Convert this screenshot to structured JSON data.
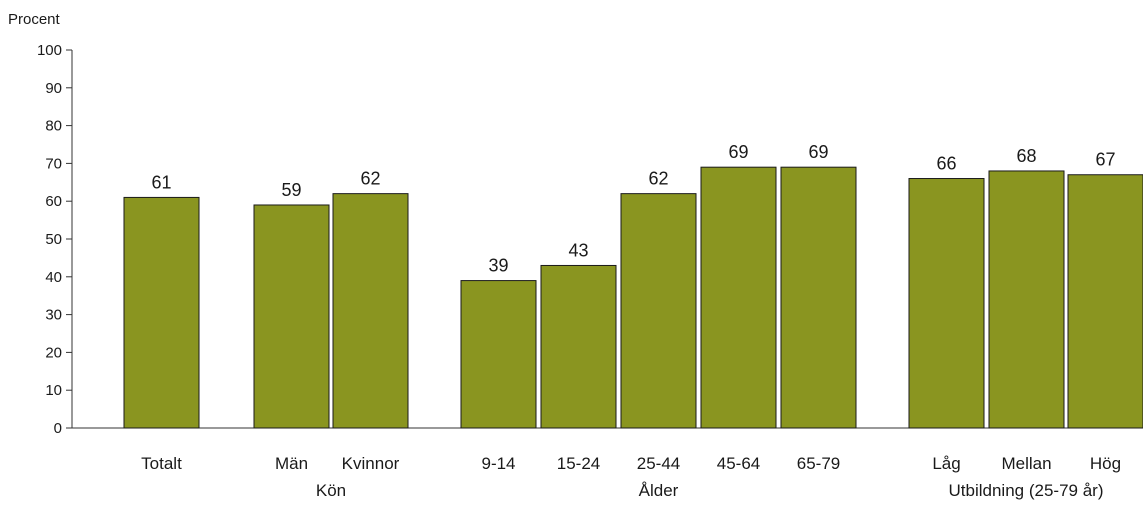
{
  "chart_data": {
    "type": "bar",
    "ylabel": "Procent",
    "ylim": [
      0,
      100
    ],
    "yticks": [
      0,
      10,
      20,
      30,
      40,
      50,
      60,
      70,
      80,
      90,
      100
    ],
    "grid": false,
    "bar_color": "#8a9520",
    "categories": [
      "Totalt",
      "Män",
      "Kvinnor",
      "9-14",
      "15-24",
      "25-44",
      "45-64",
      "65-79",
      "Låg",
      "Mellan",
      "Hög"
    ],
    "values": [
      61,
      59,
      62,
      39,
      43,
      62,
      69,
      69,
      66,
      68,
      67
    ],
    "groups": [
      {
        "label": "",
        "categories": [
          "Totalt"
        ]
      },
      {
        "label": "Kön",
        "categories": [
          "Män",
          "Kvinnor"
        ]
      },
      {
        "label": "Ålder",
        "categories": [
          "9-14",
          "15-24",
          "25-44",
          "45-64",
          "65-79"
        ]
      },
      {
        "label": "Utbildning (25-79 år)",
        "categories": [
          "Låg",
          "Mellan",
          "Hög"
        ]
      }
    ]
  }
}
